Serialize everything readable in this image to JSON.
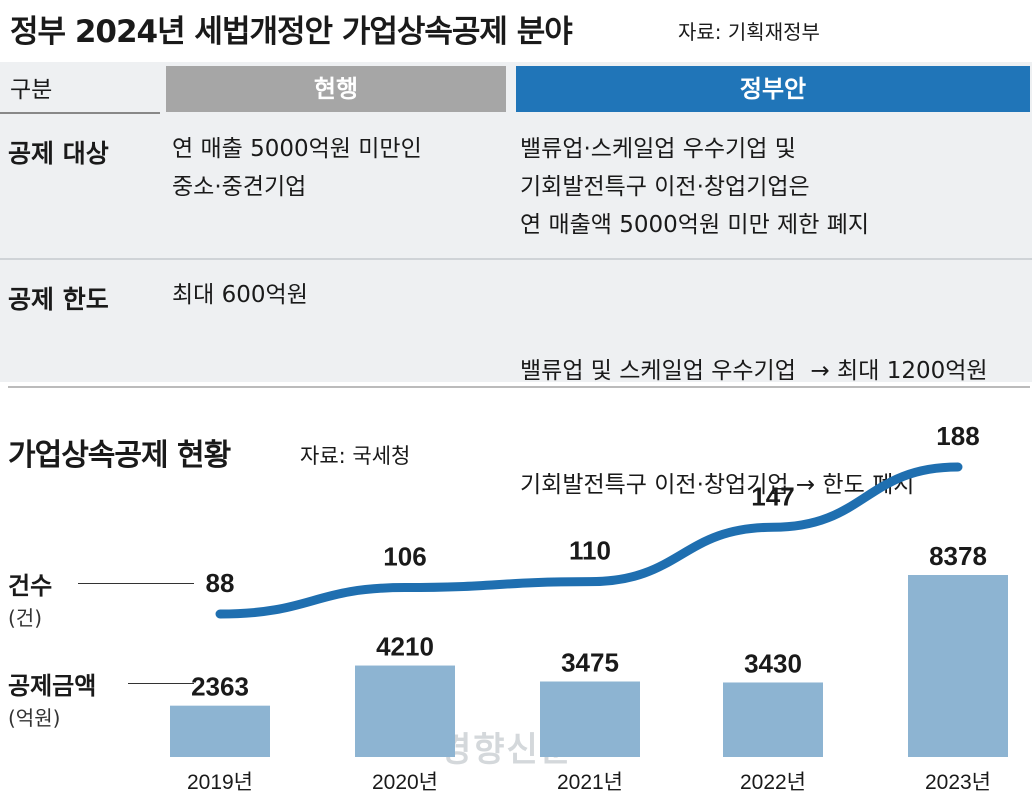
{
  "header": {
    "title": "정부 2024년 세법개정안 가업상속공제 분야",
    "source": "자료: 기획재정부"
  },
  "table": {
    "col_label": "구분",
    "col_current": "현행",
    "col_gov": "정부안",
    "rows": [
      {
        "label": "공제 대상",
        "current": [
          "연 매출 5000억원 미만인",
          "중소·중견기업"
        ],
        "gov": [
          "밸류업·스케일업 우수기업 및",
          "기회발전특구 이전·창업기업은",
          "연 매출액 5000억원 미만 제한 폐지"
        ]
      },
      {
        "label": "공제 한도",
        "current": [
          "최대 600억원"
        ],
        "gov": [
          "밸류업 및 스케일업 우수기업  → 최대 1200억원",
          "기회발전특구 이전·창업기업 → 한도 폐지"
        ]
      }
    ]
  },
  "chart": {
    "title": "가업상속공제 현황",
    "source": "자료: 국세청",
    "line_label": "건수",
    "line_unit": "(건)",
    "bar_label": "공제금액",
    "bar_unit": "(억원)"
  },
  "watermark": "경향신문",
  "chart_data": {
    "type": "bar",
    "categories": [
      "2019년",
      "2020년",
      "2021년",
      "2022년",
      "2023년"
    ],
    "series": [
      {
        "name": "공제금액",
        "type": "bar",
        "unit": "억원",
        "values": [
          2363,
          4210,
          3475,
          3430,
          8378
        ]
      },
      {
        "name": "건수",
        "type": "line",
        "unit": "건",
        "values": [
          88,
          106,
          110,
          147,
          188
        ]
      }
    ],
    "colors": {
      "bar": "#8db4d2",
      "line": "#1f6fb0"
    }
  }
}
